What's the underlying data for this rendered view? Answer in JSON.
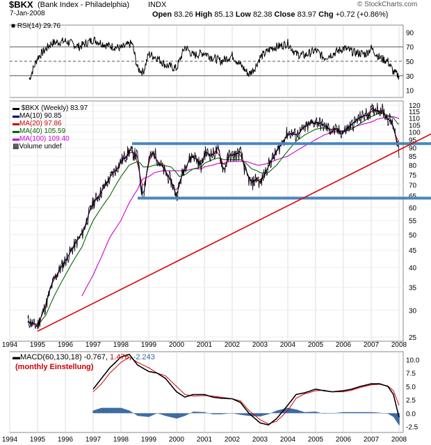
{
  "header": {
    "symbol": "$BKX",
    "name": "(Bank Index - Philadelphia)",
    "exchange": "INDX",
    "date": "7-Jan-2008",
    "watermark": "© StockCharts.com",
    "open_label": "Open",
    "open": "83.26",
    "high_label": "High",
    "high": "85.13",
    "low_label": "Low",
    "low": "82.38",
    "close_label": "Close",
    "close": "83.97",
    "chg_label": "Chg",
    "chg": "+0.72 (+0.86%)"
  },
  "rsi": {
    "label": "RSI(14)",
    "value": "29.76"
  },
  "price_legend": [
    {
      "text": "$BKX (Weekly) 83.97",
      "color": "#000000"
    },
    {
      "text": "MA(10) 90.85",
      "color": "#000080"
    },
    {
      "text": "MA(20) 97.86",
      "color": "#cc0000"
    },
    {
      "text": "MA(40) 105.59",
      "color": "#006600"
    },
    {
      "text": "MA(100) 109.40",
      "color": "#cc00cc"
    },
    {
      "text": "Volume undef",
      "color": "#000000"
    }
  ],
  "macd": {
    "label": "MACD(60,130,18)",
    "macd_value": "-0.767",
    "signal_value": "1.476",
    "hist_value": "-2.243",
    "note": "(monthly Einstellung)"
  },
  "colors": {
    "price": "#000000",
    "ma10": "#000080",
    "ma20": "#cc0000",
    "ma40": "#006600",
    "ma100": "#cc00cc",
    "trend": "#dd0000",
    "channel": "#4a86c0",
    "hist": "#3b6aa0"
  },
  "chart_data": [
    {
      "type": "line",
      "title": "RSI(14) 29.76",
      "ylim": [
        0,
        100
      ],
      "yticks": [
        10,
        30,
        50,
        70,
        90
      ],
      "reference_lines": [
        30,
        50,
        70
      ],
      "x_points": [
        1994.7,
        1995,
        1995.5,
        1996,
        1996.5,
        1997,
        1997.5,
        1998,
        1998.4,
        1998.6,
        1998.8,
        1999,
        1999.3,
        1999.6,
        2000,
        2000.3,
        2000.6,
        2001,
        2001.3,
        2001.6,
        2002,
        2002.3,
        2002.6,
        2002.8,
        2003,
        2003.4,
        2003.8,
        2004,
        2004.3,
        2004.6,
        2005,
        2005.3,
        2005.6,
        2006,
        2006.4,
        2006.8,
        2007,
        2007.3,
        2007.6,
        2007.8,
        2008
      ],
      "values": [
        25,
        55,
        75,
        78,
        70,
        80,
        72,
        68,
        75,
        40,
        35,
        60,
        55,
        45,
        40,
        70,
        58,
        62,
        55,
        50,
        58,
        45,
        32,
        40,
        55,
        68,
        72,
        75,
        60,
        58,
        65,
        55,
        60,
        68,
        62,
        60,
        68,
        55,
        50,
        35,
        29.76
      ]
    },
    {
      "type": "line",
      "title": "$BKX (Weekly) 83.97",
      "y_scale": "log",
      "ylim": [
        25,
        120
      ],
      "yticks": [
        25,
        30,
        35,
        40,
        45,
        50,
        55,
        60,
        65,
        70,
        75,
        80,
        85,
        90,
        95,
        100,
        105,
        110,
        115,
        120
      ],
      "xticks": [
        "1994",
        "1995",
        "1996",
        "1997",
        "1998",
        "1999",
        "2000",
        "2001",
        "2002",
        "2003",
        "2004",
        "2005",
        "2006",
        "2007",
        "2008"
      ],
      "x_points": [
        1994.65,
        1994.9,
        1995,
        1995.3,
        1995.6,
        1996,
        1996.3,
        1996.6,
        1997,
        1997.3,
        1997.6,
        1998,
        1998.3,
        1998.6,
        1998.7,
        1998.8,
        1999,
        1999.2,
        1999.5,
        1999.8,
        2000,
        2000.1,
        2000.3,
        2000.6,
        2000.9,
        2001,
        2001.3,
        2001.5,
        2001.7,
        2001.9,
        2002,
        2002.3,
        2002.5,
        2002.7,
        2002.9,
        2003,
        2003.3,
        2003.6,
        2004,
        2004.3,
        2004.6,
        2005,
        2005.3,
        2005.6,
        2006,
        2006.3,
        2006.6,
        2007,
        2007.2,
        2007.4,
        2007.6,
        2007.8,
        2007.95,
        2008
      ],
      "series": [
        {
          "name": "$BKX (Weekly) 83.97",
          "values": [
            28,
            27,
            27,
            31,
            37,
            42,
            46,
            50,
            62,
            67,
            73,
            82,
            88,
            85,
            70,
            65,
            83,
            87,
            78,
            72,
            65,
            70,
            80,
            86,
            79,
            87,
            86,
            89,
            77,
            86,
            85,
            87,
            75,
            70,
            74,
            70,
            80,
            87,
            100,
            98,
            102,
            108,
            104,
            101,
            100,
            105,
            110,
            115,
            118,
            116,
            110,
            105,
            93,
            83.97
          ]
        },
        {
          "name": "MA(40) 105.59",
          "values": [
            null,
            null,
            27,
            29,
            33,
            38,
            42,
            46,
            55,
            60,
            65,
            74,
            80,
            82,
            81,
            79,
            79,
            80,
            80,
            79,
            76,
            74,
            75,
            78,
            79,
            81,
            83,
            84,
            83,
            83,
            83,
            83,
            81,
            78,
            77,
            76,
            76,
            80,
            88,
            94,
            98,
            102,
            103,
            102,
            100,
            102,
            106,
            111,
            113,
            114,
            112,
            110,
            106,
            105.59
          ]
        },
        {
          "name": "MA(100) 109.40",
          "values": [
            null,
            null,
            null,
            null,
            null,
            null,
            null,
            33,
            38,
            43,
            49,
            55,
            62,
            68,
            71,
            73,
            74,
            76,
            77,
            77,
            77,
            77,
            77,
            78,
            78,
            79,
            80,
            81,
            81,
            82,
            82,
            82,
            82,
            81,
            80,
            80,
            81,
            83,
            85,
            88,
            91,
            95,
            98,
            100,
            101,
            103,
            105,
            107,
            109,
            110,
            111,
            111,
            110,
            109.4
          ]
        }
      ],
      "channel_lines": [
        92.5,
        64
      ],
      "trendline": {
        "from": [
          1995,
          26
        ],
        "to": [
          2008.4,
          92
        ]
      }
    },
    {
      "type": "line",
      "title": "MACD(60,130,18) -0.767, 1.476, -2.243",
      "ylim": [
        -3.6,
        11.5
      ],
      "yticks": [
        -2.5,
        0.0,
        2.5,
        5.0,
        7.5,
        10.0
      ],
      "x_points": [
        1997,
        1997.3,
        1997.6,
        1998,
        1998.3,
        1998.6,
        1999,
        1999.3,
        1999.6,
        2000,
        2000.3,
        2000.6,
        2001,
        2001.3,
        2001.6,
        2002,
        2002.3,
        2002.6,
        2003,
        2003.3,
        2003.6,
        2004,
        2004.3,
        2004.6,
        2005,
        2005.3,
        2005.6,
        2006,
        2006.3,
        2006.6,
        2007,
        2007.3,
        2007.6,
        2007.8,
        2008
      ],
      "series": [
        {
          "name": "MACD",
          "values": [
            4.5,
            6.5,
            8.5,
            10.5,
            11,
            9,
            7.8,
            7.5,
            6.5,
            4,
            3,
            3.5,
            3.5,
            3,
            2.8,
            2.7,
            2,
            0,
            -1.8,
            -2.2,
            -1,
            1.5,
            3.5,
            3.8,
            4.5,
            4.2,
            4,
            4.2,
            4.5,
            5,
            5.5,
            5.5,
            5,
            3.5,
            -0.767
          ]
        },
        {
          "name": "Signal",
          "values": [
            4,
            5.5,
            7.5,
            9.5,
            10.5,
            9.5,
            8.5,
            7.5,
            7,
            5,
            3.5,
            3.2,
            3.3,
            3.2,
            3,
            2.7,
            2.3,
            0.5,
            -1.2,
            -2,
            -1.5,
            0.5,
            2.8,
            3.6,
            4.2,
            4.3,
            4,
            4,
            4.3,
            4.8,
            5.3,
            5.4,
            5.1,
            4.2,
            1.476
          ]
        },
        {
          "name": "Histogram",
          "values": [
            0.5,
            1,
            1,
            1,
            0.5,
            -0.5,
            -0.7,
            0,
            -0.5,
            -1,
            -0.5,
            0.3,
            0.2,
            -0.2,
            -0.2,
            0,
            -0.3,
            -0.5,
            -0.6,
            -0.2,
            0.5,
            1,
            0.7,
            0.2,
            0.3,
            -0.1,
            0,
            0.2,
            0.2,
            0.2,
            0.2,
            0.1,
            -0.1,
            -0.7,
            -2.243
          ]
        }
      ]
    }
  ]
}
